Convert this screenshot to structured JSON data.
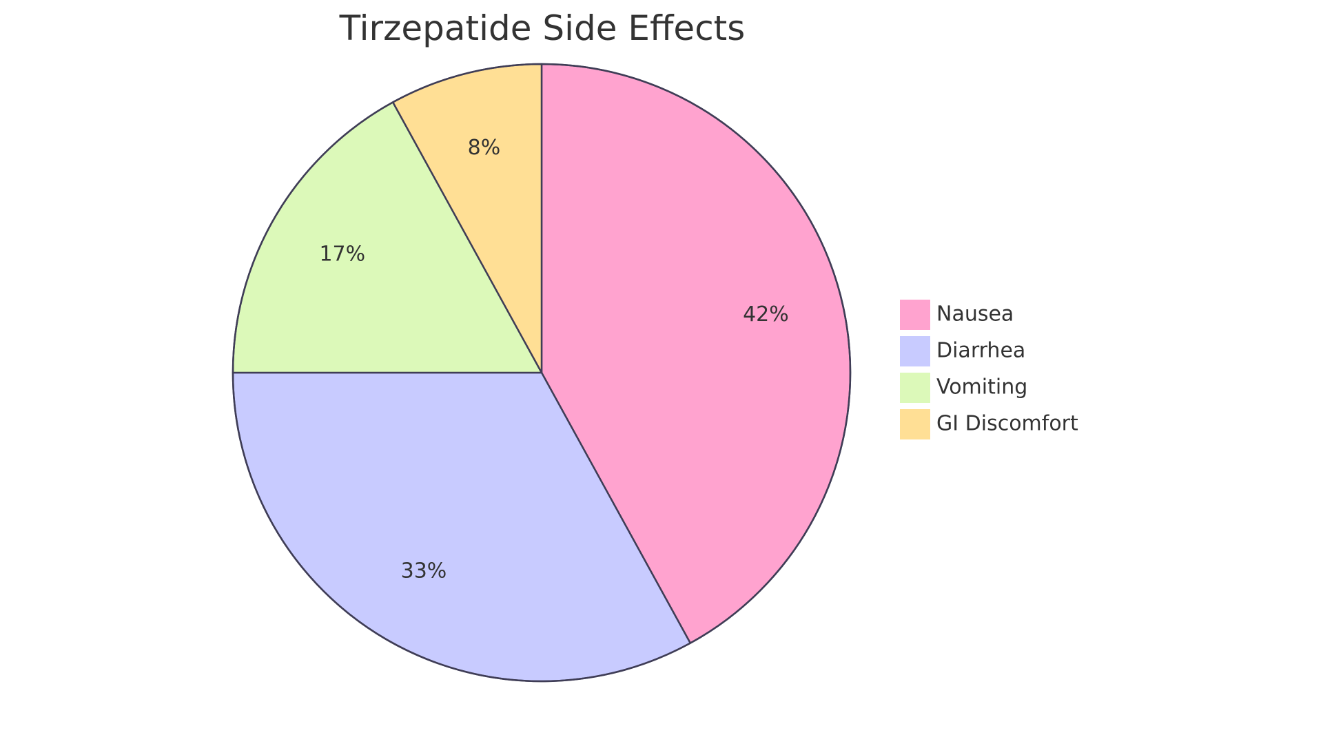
{
  "chart_data": {
    "type": "pie",
    "title": "Tirzepatide Side Effects",
    "categories": [
      "Nausea",
      "Diarrhea",
      "Vomiting",
      "GI Discomfort"
    ],
    "values": [
      42,
      33,
      17,
      8
    ],
    "labels": [
      "42%",
      "33%",
      "17%",
      "8%"
    ],
    "colors": [
      "#FFA3CF",
      "#C8CBFF",
      "#DCF9B9",
      "#FFDF95"
    ],
    "stroke_color": "#3F3D56",
    "start_angle": "top",
    "direction": "clockwise",
    "legend_position": "right"
  }
}
